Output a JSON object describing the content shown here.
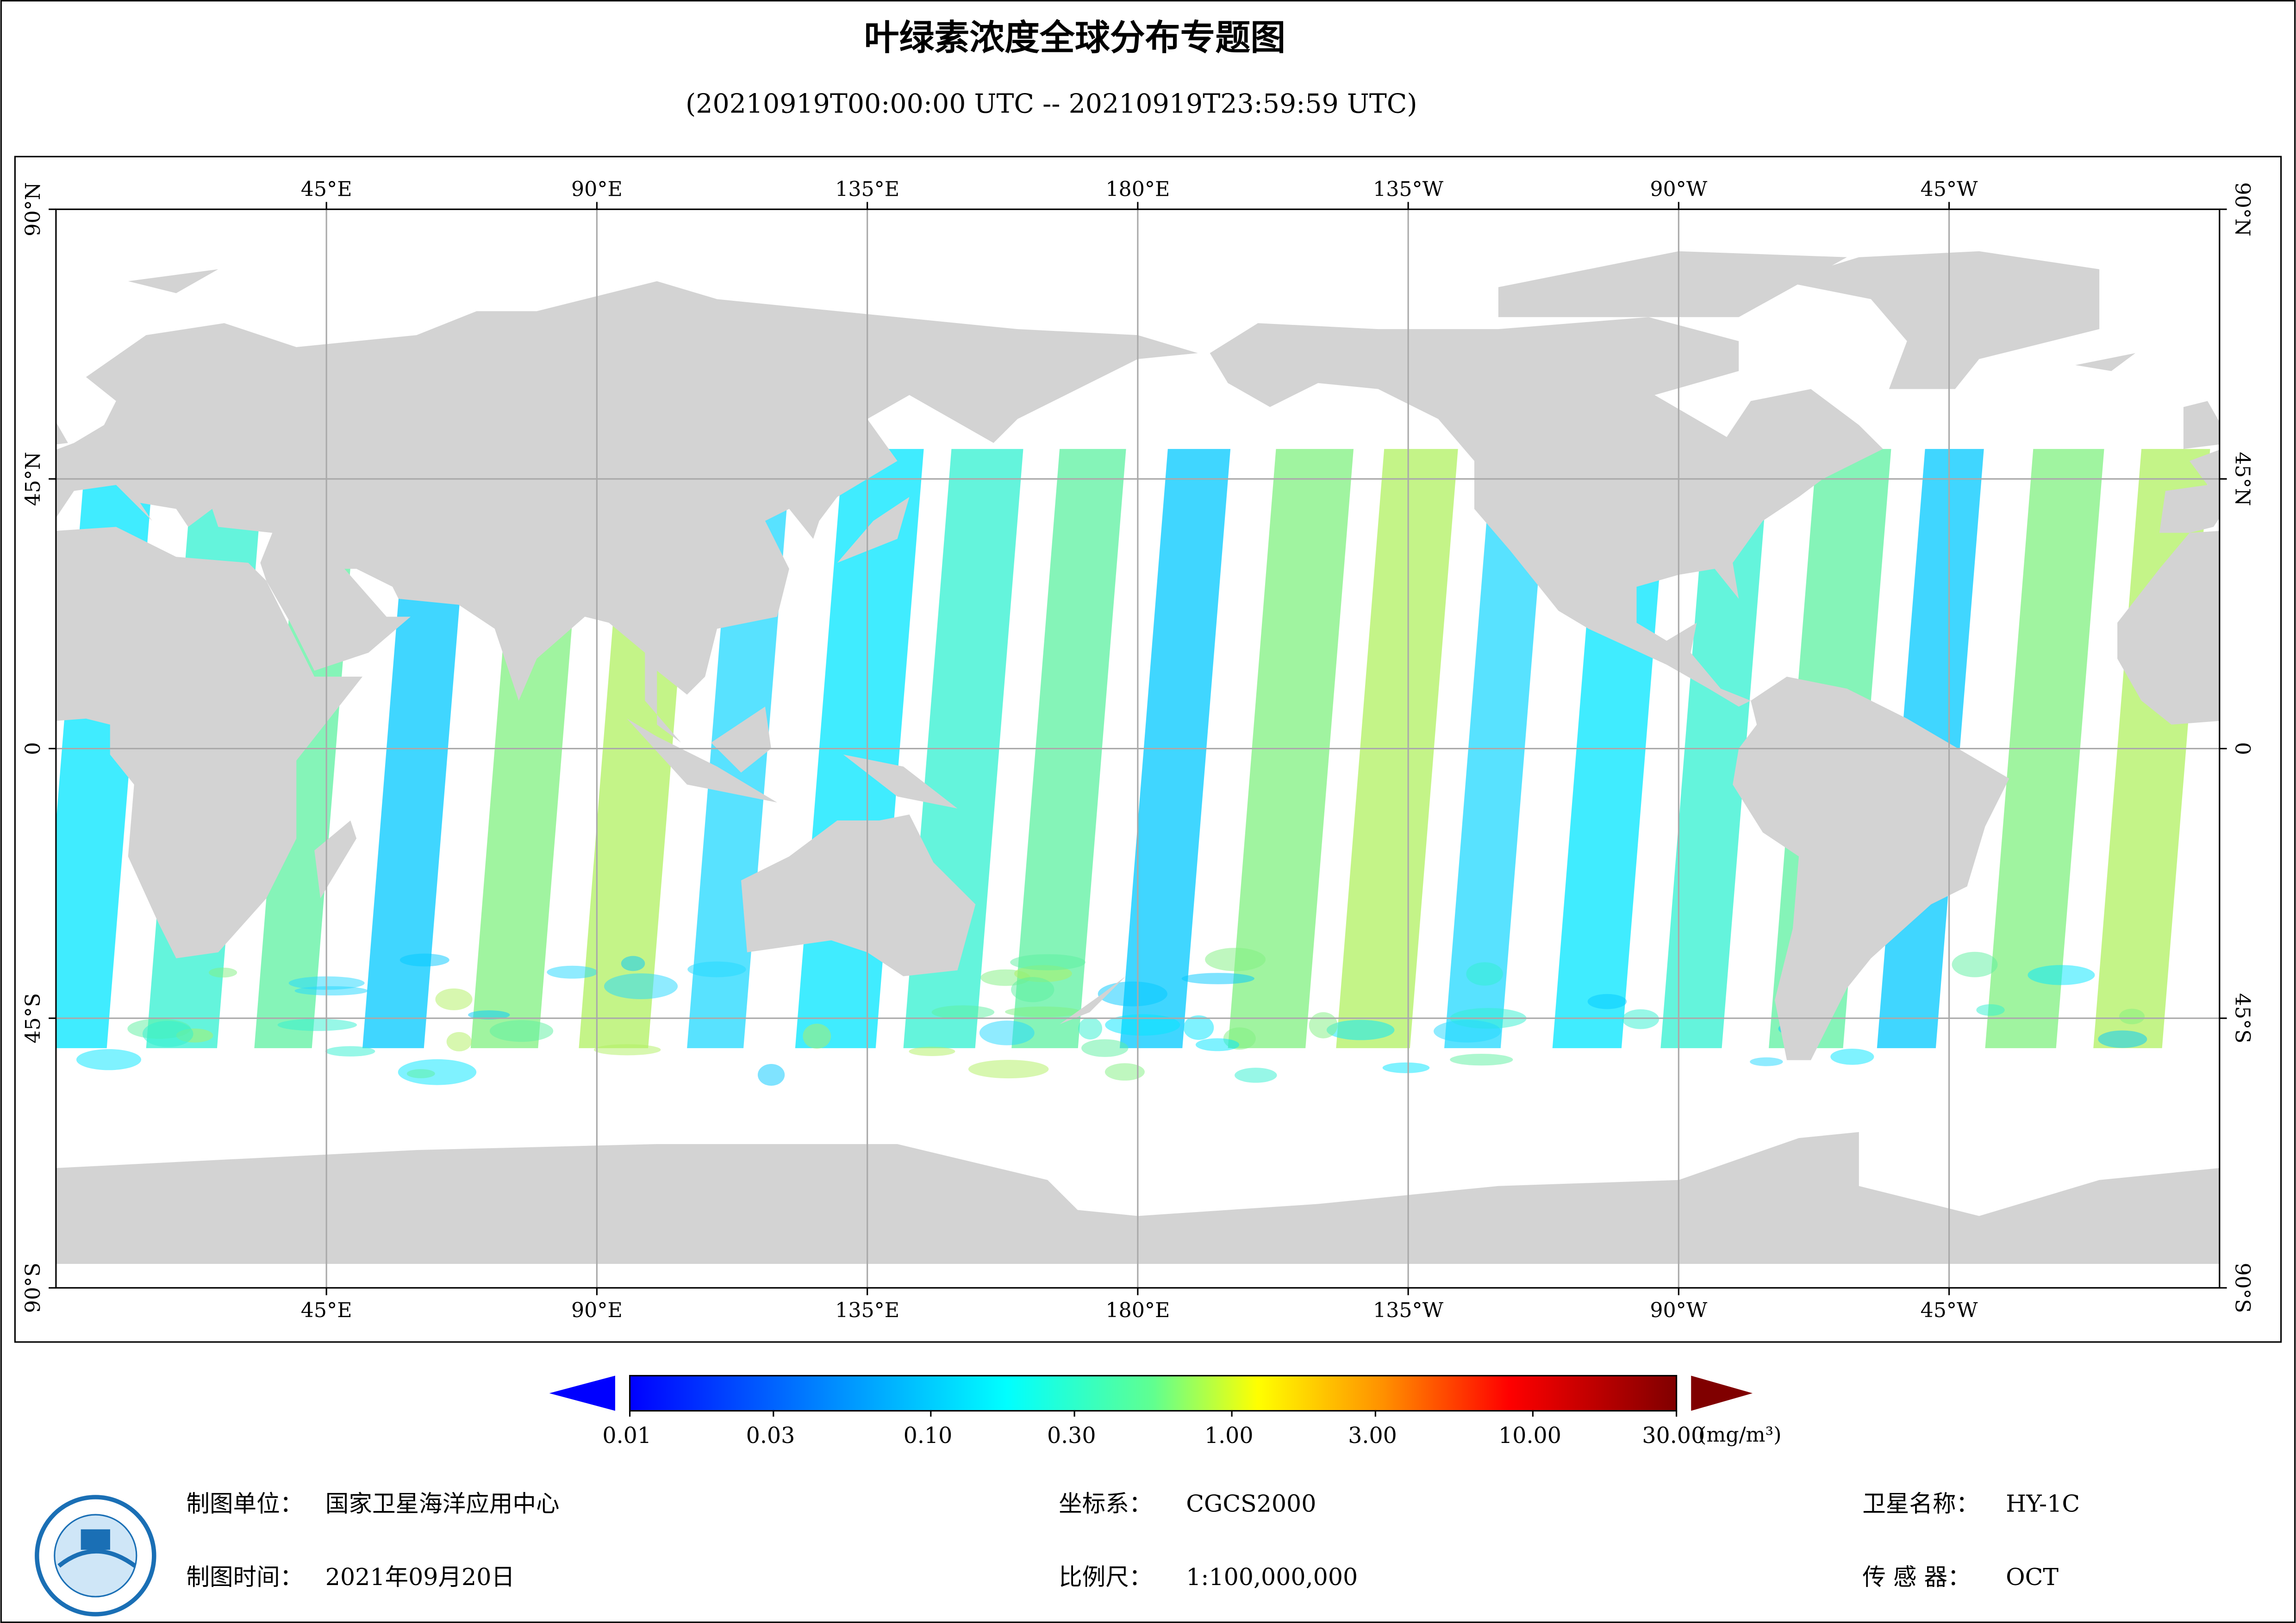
{
  "header": {
    "title": "叶绿素浓度全球分布专题图",
    "subtitle": "(20210919T00:00:00 UTC -- 20210919T23:59:59 UTC)"
  },
  "map": {
    "lon_ticks": [
      {
        "value": 45,
        "label": "45°E"
      },
      {
        "value": 90,
        "label": "90°E"
      },
      {
        "value": 135,
        "label": "135°E"
      },
      {
        "value": 180,
        "label": "180°E"
      },
      {
        "value": -135,
        "label": "135°W"
      },
      {
        "value": -90,
        "label": "90°W"
      },
      {
        "value": -45,
        "label": "45°W"
      }
    ],
    "lat_ticks": [
      {
        "value": 90,
        "label": "90°N"
      },
      {
        "value": 45,
        "label": "45°N"
      },
      0,
      {
        "value": -45,
        "label": "45°S"
      },
      {
        "value": -90,
        "label": "90°S"
      }
    ]
  },
  "colorbar": {
    "scale": "log",
    "lim": [
      0.01,
      30
    ],
    "ticks": [
      0.01,
      0.03,
      {
        "value": 0.1,
        "label": "0.10"
      },
      {
        "value": 0.3,
        "label": "0.30"
      },
      {
        "value": 1,
        "label": "1.00"
      },
      {
        "value": 3,
        "label": "3.00"
      },
      {
        "value": 10,
        "label": "10.00"
      },
      {
        "value": 30,
        "label": "30.00"
      }
    ],
    "unit": "(mg/m³)"
  },
  "footer": {
    "unit": {
      "label": "制图单位：",
      "value": "国家卫星海洋应用中心"
    },
    "date": {
      "label": "制图时间：",
      "value": "2021年09月20日"
    },
    "crs": {
      "label": "坐标系：",
      "value": "CGCS2000"
    },
    "scale": {
      "label": "比例尺：",
      "value": "1:100,000,000"
    },
    "satellite": {
      "label": "卫星名称：",
      "value": "HY-1C"
    },
    "sensor": {
      "label": "传 感 器：",
      "value": "OCT"
    }
  }
}
